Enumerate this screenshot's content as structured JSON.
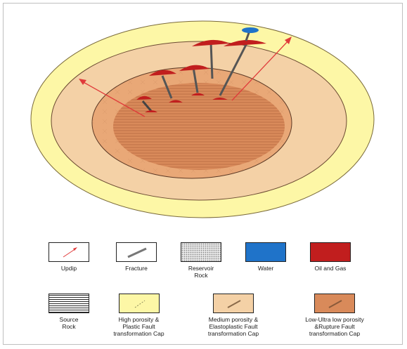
{
  "legend": {
    "row1": [
      {
        "key": "updip",
        "label": "Updip"
      },
      {
        "key": "fracture",
        "label": "Fracture"
      },
      {
        "key": "reservoir",
        "label": "Reservoir\nRock"
      },
      {
        "key": "water",
        "label": "Water"
      },
      {
        "key": "oilgas",
        "label": "Oil and Gas"
      }
    ],
    "row2": [
      {
        "key": "source",
        "label": "Source\nRock"
      },
      {
        "key": "high",
        "label": "High porosity &\nPlastic Fault\ntransformation Cap"
      },
      {
        "key": "medium",
        "label": "Medium porosity &\nElastoplastic Fault\ntransformation Cap"
      },
      {
        "key": "low",
        "label": "Low-Ultra low porosity\n&Rupture Fault\ntransformation Cap"
      }
    ]
  },
  "colors": {
    "outer_yellow": "#fdf7a6",
    "high_porosity": "#f4d1a6",
    "medium_porosity": "#e9a877",
    "low_porosity": "#d98a5a",
    "oil_gas": "#c11e1e",
    "water": "#1f73c9",
    "arrow": "#e03a3a"
  }
}
